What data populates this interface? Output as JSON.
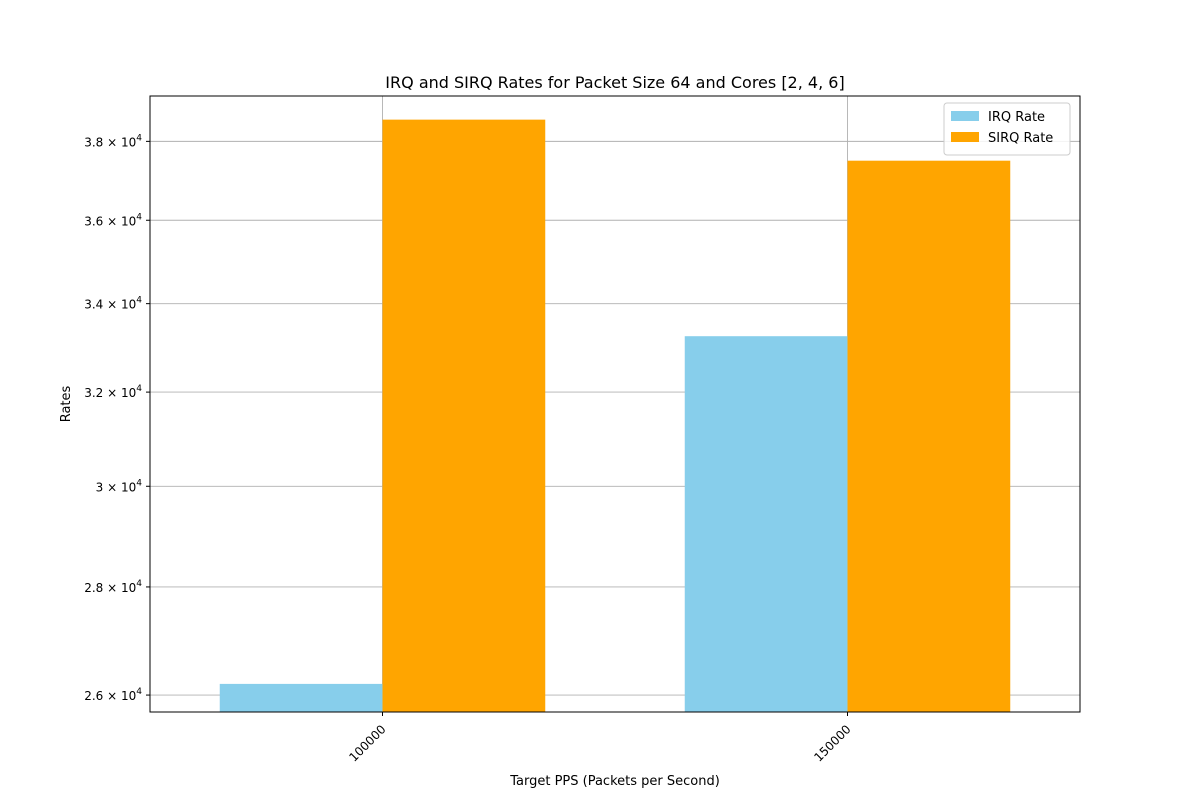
{
  "chart_data": {
    "type": "bar",
    "title": "IRQ and SIRQ Rates for Packet Size 64 and Cores [2, 4, 6]",
    "xlabel": "Target PPS (Packets per Second)",
    "ylabel": "Rates",
    "categories": [
      "100000",
      "150000"
    ],
    "series": [
      {
        "name": "IRQ Rate",
        "color": "#87CEEB",
        "values": [
          26200,
          33250
        ]
      },
      {
        "name": "SIRQ Rate",
        "color": "#FFA500",
        "values": [
          38570,
          37500
        ]
      }
    ],
    "yscale": "log",
    "ylim": [
      25700,
      39200
    ],
    "yticks": [
      {
        "value": 26000,
        "mantissa": "2.6"
      },
      {
        "value": 28000,
        "mantissa": "2.8"
      },
      {
        "value": 30000,
        "mantissa": "3"
      },
      {
        "value": 32000,
        "mantissa": "3.2"
      },
      {
        "value": 34000,
        "mantissa": "3.4"
      },
      {
        "value": 36000,
        "mantissa": "3.6"
      },
      {
        "value": 38000,
        "mantissa": "3.8"
      }
    ],
    "tick_base": "10",
    "tick_exponent": "4",
    "grid": true,
    "legend_position": "top-right"
  }
}
